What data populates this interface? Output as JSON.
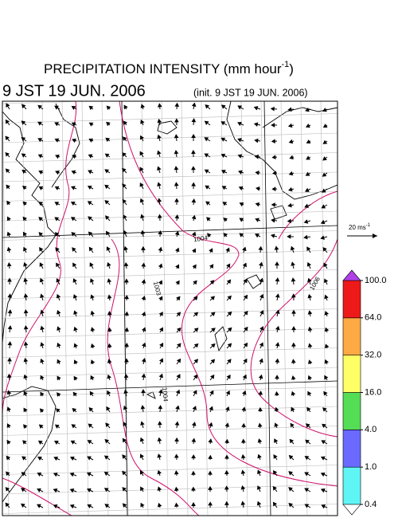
{
  "header": {
    "title": "PRECIPITATION INTENSITY (mm hour",
    "title_sup": "-1",
    "title_end": ")",
    "valid_time": "9 JST 19 JUN. 2006",
    "init": "(init. 9 JST 19 JUN. 2006)"
  },
  "map": {
    "contour_labels": [
      "1004",
      "1003",
      "1004",
      "1006"
    ],
    "wind_reference": {
      "label": "20 ms",
      "sup": "-1"
    }
  },
  "colorbar": {
    "ticks": [
      {
        "value": 0.4,
        "label": "0.4"
      },
      {
        "value": 1,
        "label": "1.0"
      },
      {
        "value": 4,
        "label": "4.0"
      },
      {
        "value": 16,
        "label": "16.0"
      },
      {
        "value": 32,
        "label": "32.0"
      },
      {
        "value": 64,
        "label": "64.0"
      },
      {
        "value": 100,
        "label": "100.0"
      }
    ],
    "colors": [
      "#5ff5f5",
      "#6a6aff",
      "#55dd55",
      "#ffff66",
      "#ffaa44",
      "#ee1a1a"
    ],
    "over_color": "#b040e8",
    "under_color": "#ffffff"
  }
}
